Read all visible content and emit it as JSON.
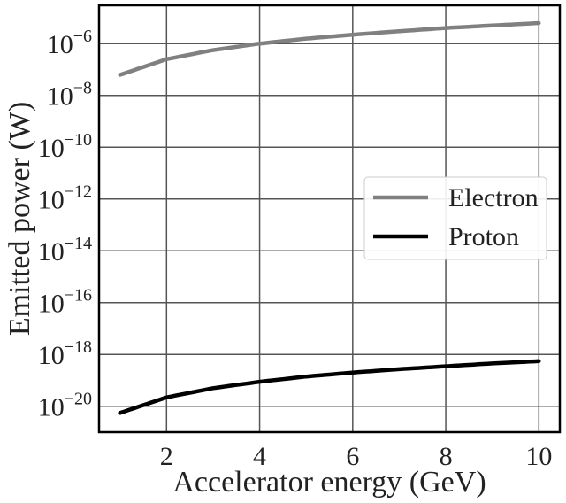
{
  "chart_data": {
    "type": "line",
    "xlabel": "Accelerator energy (GeV)",
    "ylabel": "Emitted power (W)",
    "y_scale": "log",
    "xlim": [
      0.55,
      10.45
    ],
    "ylim": [
      1e-21,
      3e-05
    ],
    "xticks": [
      2,
      4,
      6,
      8,
      10
    ],
    "yticks": [
      {
        "value": 1e-20,
        "base": "10",
        "exp": "−20"
      },
      {
        "value": 1e-18,
        "base": "10",
        "exp": "−18"
      },
      {
        "value": 1e-16,
        "base": "10",
        "exp": "−16"
      },
      {
        "value": 1e-14,
        "base": "10",
        "exp": "−14"
      },
      {
        "value": 1e-12,
        "base": "10",
        "exp": "−12"
      },
      {
        "value": 1e-10,
        "base": "10",
        "exp": "−10"
      },
      {
        "value": 1e-08,
        "base": "10",
        "exp": "−8"
      },
      {
        "value": 1e-06,
        "base": "10",
        "exp": "−6"
      }
    ],
    "grid": true,
    "legend_position": "center-right",
    "series": [
      {
        "name": "Electron",
        "color": "#808080",
        "x": [
          1,
          2,
          3,
          4,
          5,
          6,
          7,
          8,
          9,
          10
        ],
        "y": [
          6.2e-08,
          2.5e-07,
          5.6e-07,
          1e-06,
          1.55e-06,
          2.2e-06,
          3e-06,
          4e-06,
          5e-06,
          6.2e-06
        ]
      },
      {
        "name": "Proton",
        "color": "#000000",
        "x": [
          1,
          2,
          3,
          4,
          5,
          6,
          7,
          8,
          9,
          10
        ],
        "y": [
          5.5e-21,
          2.2e-20,
          5e-20,
          8.8e-20,
          1.4e-19,
          2e-19,
          2.7e-19,
          3.5e-19,
          4.5e-19,
          5.5e-19
        ]
      }
    ]
  }
}
